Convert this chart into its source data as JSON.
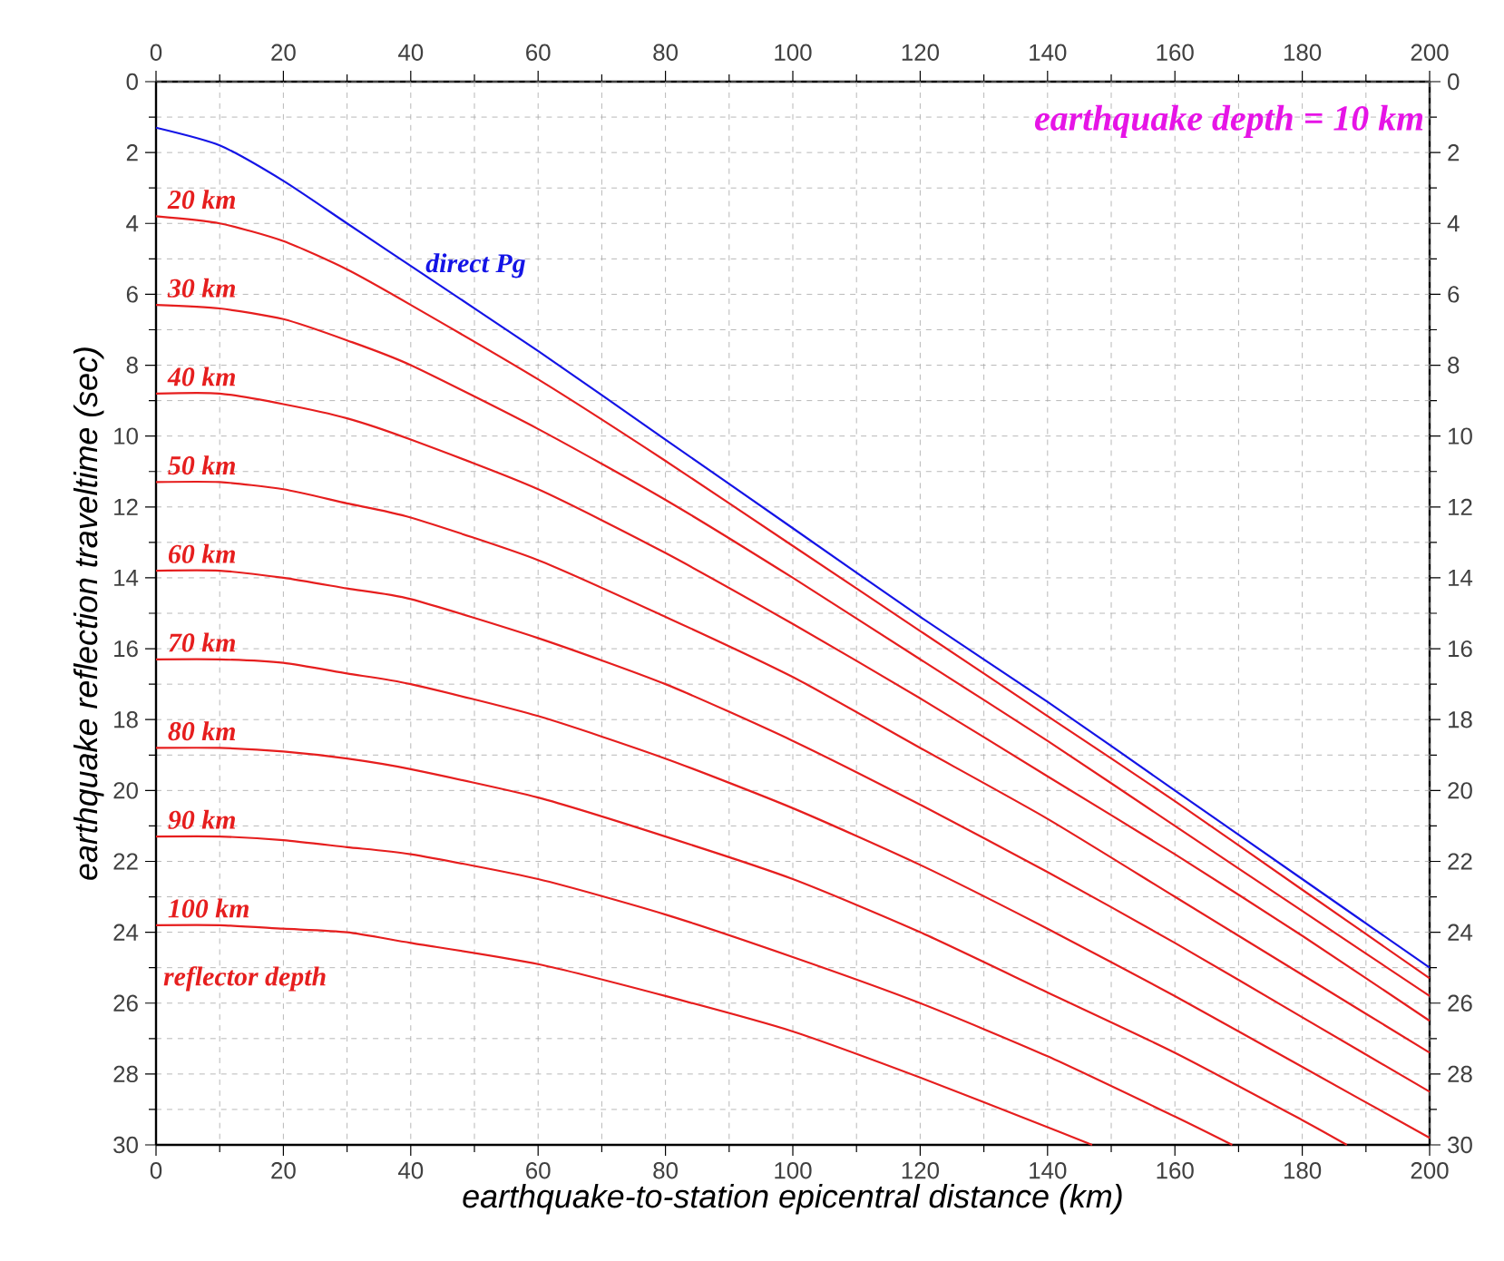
{
  "chart_data": {
    "type": "line",
    "xlabel": "earthquake-to-station epicentral distance (km)",
    "ylabel": "earthquake reflection traveltime (sec)",
    "annotations": [
      "earthquake depth = 10 km",
      "reflector depth"
    ],
    "xlim": [
      0,
      200
    ],
    "xticks": [
      0,
      20,
      40,
      60,
      80,
      100,
      120,
      140,
      160,
      180,
      200
    ],
    "x2lim": [
      0,
      200
    ],
    "x2ticks": [
      0,
      20,
      40,
      60,
      80,
      100,
      120,
      140,
      160,
      180,
      200
    ],
    "ylim": [
      30,
      0
    ],
    "yticks": [
      0,
      2,
      4,
      6,
      8,
      10,
      12,
      14,
      16,
      18,
      20,
      22,
      24,
      26,
      28,
      30
    ],
    "y2lim": [
      30,
      0
    ],
    "y2ticks": [
      0,
      2,
      4,
      6,
      8,
      10,
      12,
      14,
      16,
      18,
      20,
      22,
      24,
      26,
      28,
      30
    ],
    "grid": true,
    "line_style": "solid",
    "series": [
      {
        "name": "direct Pg",
        "color": "#1414e6",
        "x": [
          0,
          10,
          20,
          30,
          40,
          60,
          80,
          100,
          120,
          140,
          160,
          180,
          200
        ],
        "values": [
          1.3,
          1.8,
          2.8,
          4.0,
          5.2,
          7.6,
          10.1,
          12.6,
          15.1,
          17.5,
          20.0,
          22.5,
          25.0
        ]
      },
      {
        "name": "20 km",
        "color": "#e61e1e",
        "x": [
          0,
          10,
          20,
          30,
          40,
          60,
          80,
          100,
          120,
          140,
          160,
          180,
          200
        ],
        "values": [
          3.8,
          4.0,
          4.5,
          5.3,
          6.3,
          8.4,
          10.7,
          13.1,
          15.5,
          17.9,
          20.3,
          22.8,
          25.3
        ]
      },
      {
        "name": "30 km",
        "color": "#e61e1e",
        "x": [
          0,
          10,
          20,
          30,
          40,
          60,
          80,
          100,
          120,
          140,
          160,
          180,
          200
        ],
        "values": [
          6.3,
          6.4,
          6.7,
          7.3,
          8.0,
          9.8,
          11.8,
          14.0,
          16.3,
          18.6,
          21.0,
          23.4,
          25.8
        ]
      },
      {
        "name": "40 km",
        "color": "#e61e1e",
        "x": [
          0,
          10,
          20,
          30,
          40,
          60,
          80,
          100,
          120,
          140,
          160,
          180,
          200
        ],
        "values": [
          8.8,
          8.8,
          9.1,
          9.5,
          10.1,
          11.5,
          13.3,
          15.3,
          17.4,
          19.6,
          21.8,
          24.1,
          26.5
        ]
      },
      {
        "name": "50 km",
        "color": "#e61e1e",
        "x": [
          0,
          10,
          20,
          30,
          40,
          60,
          80,
          100,
          120,
          140,
          160,
          180,
          200
        ],
        "values": [
          11.3,
          11.3,
          11.5,
          11.9,
          12.3,
          13.5,
          15.1,
          16.8,
          18.8,
          20.8,
          23.0,
          25.2,
          27.4
        ]
      },
      {
        "name": "60 km",
        "color": "#e61e1e",
        "x": [
          0,
          10,
          20,
          30,
          40,
          60,
          80,
          100,
          120,
          140,
          160,
          180,
          200
        ],
        "values": [
          13.8,
          13.8,
          14.0,
          14.3,
          14.6,
          15.7,
          17.0,
          18.6,
          20.4,
          22.3,
          24.3,
          26.4,
          28.5
        ]
      },
      {
        "name": "70 km",
        "color": "#e61e1e",
        "x": [
          0,
          10,
          20,
          30,
          40,
          60,
          80,
          100,
          120,
          140,
          160,
          180,
          200
        ],
        "values": [
          16.3,
          16.3,
          16.4,
          16.7,
          17.0,
          17.9,
          19.1,
          20.5,
          22.1,
          23.9,
          25.8,
          27.8,
          29.8
        ]
      },
      {
        "name": "80 km",
        "color": "#e61e1e",
        "x": [
          0,
          10,
          20,
          30,
          40,
          60,
          80,
          100,
          120,
          140,
          160,
          180,
          187
        ],
        "values": [
          18.8,
          18.8,
          18.9,
          19.1,
          19.4,
          20.2,
          21.3,
          22.5,
          24.0,
          25.7,
          27.4,
          29.3,
          30
        ]
      },
      {
        "name": "90 km",
        "color": "#e61e1e",
        "x": [
          0,
          10,
          20,
          30,
          40,
          60,
          80,
          100,
          120,
          140,
          160,
          169
        ],
        "values": [
          21.3,
          21.3,
          21.4,
          21.6,
          21.8,
          22.5,
          23.5,
          24.7,
          26.0,
          27.5,
          29.2,
          30
        ]
      },
      {
        "name": "100 km",
        "color": "#e61e1e",
        "x": [
          0,
          10,
          20,
          30,
          40,
          60,
          80,
          100,
          120,
          140,
          147
        ],
        "values": [
          23.8,
          23.8,
          23.9,
          24.0,
          24.3,
          24.9,
          25.8,
          26.8,
          28.1,
          29.5,
          30
        ]
      }
    ]
  }
}
